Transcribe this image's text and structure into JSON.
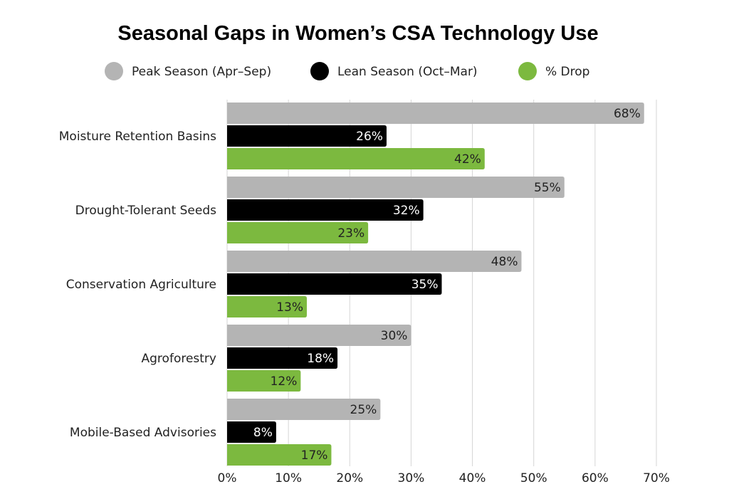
{
  "chart_data": {
    "type": "bar",
    "orientation": "horizontal",
    "title": "Seasonal Gaps in Women’s CSA Technology Use",
    "categories": [
      "Moisture Retention Basins",
      "Drought-Tolerant Seeds",
      "Conservation Agriculture",
      "Agroforestry",
      "Mobile-Based Advisories"
    ],
    "series": [
      {
        "name": "Peak Season (Apr–Sep)",
        "color": "#b4b4b4",
        "label_color": "#222222",
        "values": [
          68,
          55,
          48,
          30,
          25
        ]
      },
      {
        "name": "Lean Season (Oct–Mar)",
        "color": "#000000",
        "label_color": "#ffffff",
        "values": [
          26,
          32,
          35,
          18,
          8
        ]
      },
      {
        "name": "% Drop",
        "color": "#7cb93f",
        "label_color": "#222222",
        "values": [
          42,
          23,
          13,
          12,
          17
        ]
      }
    ],
    "xlim": [
      0,
      70
    ],
    "xticks": [
      0,
      10,
      20,
      30,
      40,
      50,
      60,
      70
    ],
    "tick_suffix": "%",
    "grid": "vertical",
    "legend": "top-center",
    "xlabel": "",
    "ylabel": ""
  }
}
